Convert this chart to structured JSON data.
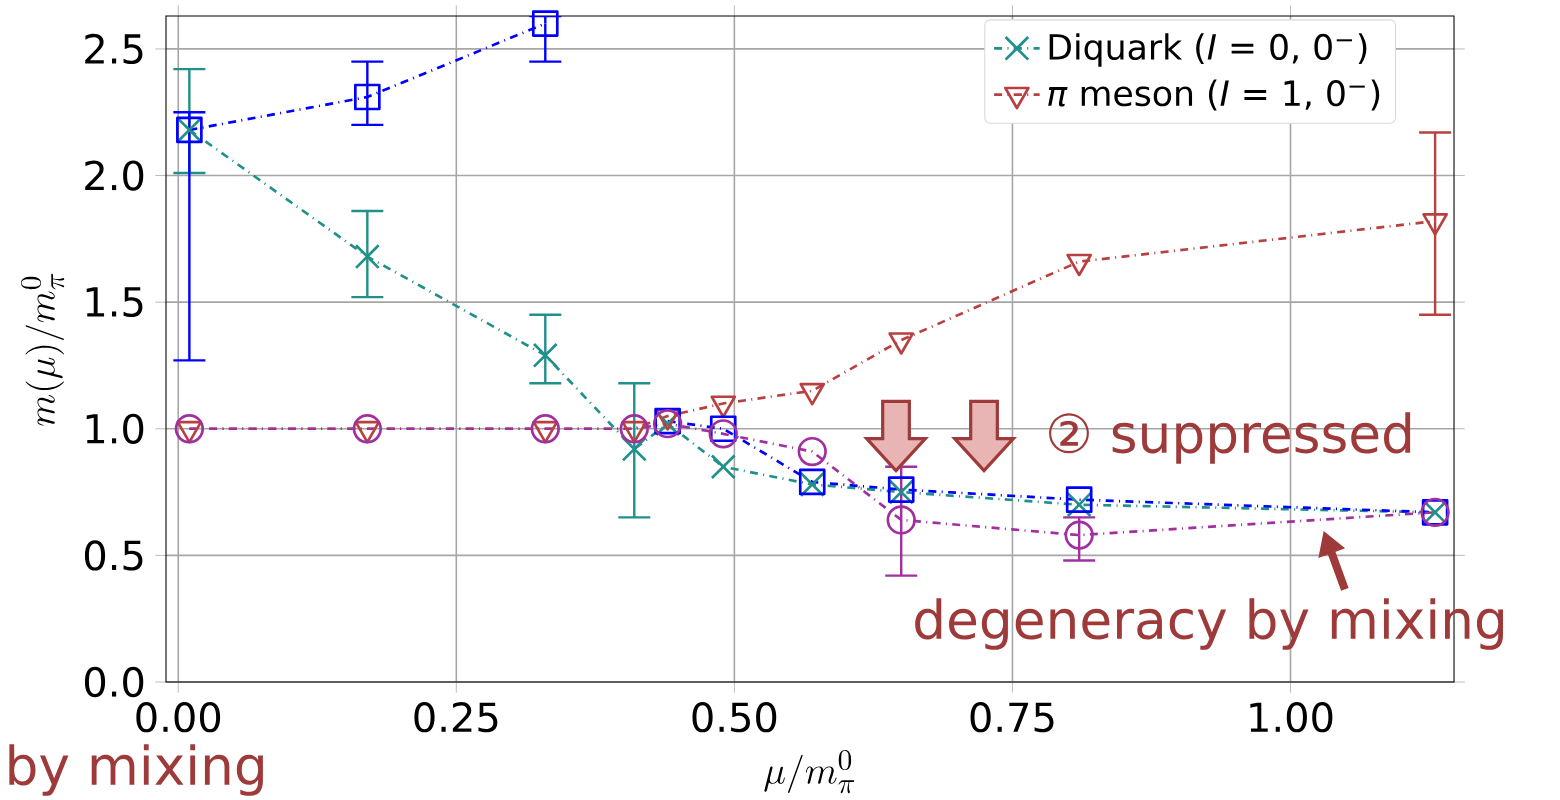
{
  "chart_data": {
    "type": "line",
    "xlabel": "\\mu/m_{\\pi}^{0}",
    "ylabel": "m(\\mu)/m_{\\pi}^{0}",
    "x": [
      0.01,
      0.17,
      0.33,
      0.41,
      0.44,
      0.49,
      0.57,
      0.65,
      0.81,
      1.13
    ],
    "xlim": [
      -0.011,
      1.147
    ],
    "ylim": [
      0,
      2.63
    ],
    "xticks": [
      {
        "value": 0,
        "label": "0.00"
      },
      {
        "value": 0.25,
        "label": "0.25"
      },
      {
        "value": 0.5,
        "label": "0.50"
      },
      {
        "value": 0.75,
        "label": "0.75"
      },
      {
        "value": 1,
        "label": "1.00"
      }
    ],
    "yticks": [
      {
        "value": 0,
        "label": "0.0"
      },
      {
        "value": 0.5,
        "label": "0.5"
      },
      {
        "value": 1,
        "label": "1.0"
      },
      {
        "value": 1.5,
        "label": "1.5"
      },
      {
        "value": 2,
        "label": "2.0"
      },
      {
        "value": 2.5,
        "label": "2.5"
      }
    ],
    "grid": true,
    "legend": "top right",
    "line_style": "dashed",
    "annotations": [
      "② suppressed",
      "degeneracy by mixing",
      "by mixing"
    ],
    "series": [
      {
        "name": "Diquark (*I* = 0, 0$^{−}$)",
        "color": "#20908a",
        "marker": "cross",
        "values": [
          2.18,
          1.68,
          1.29,
          0.92,
          1.02,
          0.85,
          0.78,
          0.75,
          0.7,
          0.67
        ],
        "errors": [
          [
            2.01,
            2.42
          ],
          [
            1.52,
            1.86
          ],
          [
            1.18,
            1.45
          ],
          [
            0.65,
            1.18
          ],
          null,
          null,
          null,
          null,
          null,
          null
        ]
      },
      {
        "name": "*π* meson (*I* = 1, 0$^{−}$)",
        "color": "#b84040",
        "marker": "triangle",
        "values": [
          1.0,
          1.0,
          1.0,
          1.0,
          1.05,
          1.1,
          1.15,
          1.35,
          1.66,
          1.82
        ],
        "errors": [
          null,
          null,
          null,
          null,
          null,
          null,
          null,
          null,
          null,
          [
            1.45,
            2.17
          ]
        ]
      },
      {
        "color": "#0000ff",
        "marker": "square",
        "values": [
          2.18,
          2.31,
          2.6,
          null,
          1.03,
          1.0,
          0.79,
          0.76,
          0.72,
          0.67
        ],
        "errors": [
          [
            1.27,
            2.25
          ],
          [
            2.2,
            2.45
          ],
          [
            2.45,
            2.63
          ],
          null,
          null,
          null,
          null,
          null,
          null,
          null
        ]
      },
      {
        "color": "#a030a0",
        "marker": "circle",
        "values": [
          1.0,
          1.0,
          1.0,
          1.0,
          1.02,
          0.98,
          0.91,
          0.64,
          0.58,
          0.67
        ],
        "errors": [
          null,
          null,
          null,
          null,
          null,
          null,
          null,
          [
            0.42,
            0.85
          ],
          [
            0.48,
            0.65
          ],
          null
        ]
      }
    ]
  }
}
